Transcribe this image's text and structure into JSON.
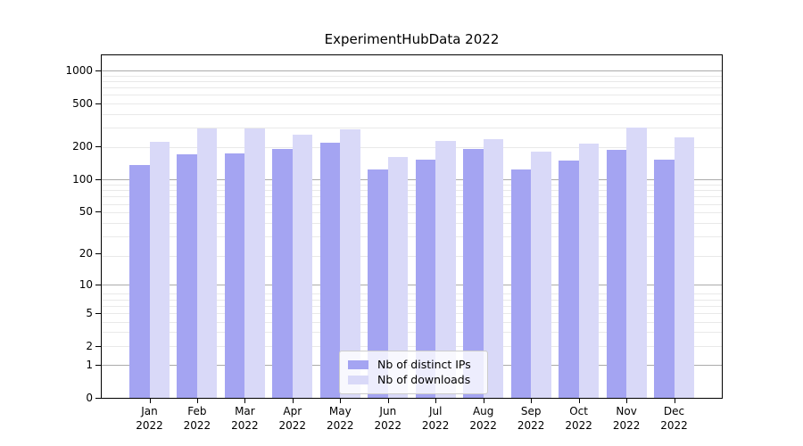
{
  "chart_data": {
    "type": "bar",
    "title": "ExperimentHubData 2022",
    "categories": [
      "Jan\n2022",
      "Feb\n2022",
      "Mar\n2022",
      "Apr\n2022",
      "May\n2022",
      "Jun\n2022",
      "Jul\n2022",
      "Aug\n2022",
      "Sep\n2022",
      "Oct\n2022",
      "Nov\n2022",
      "Dec\n2022"
    ],
    "series": [
      {
        "name": "Nb of distinct IPs",
        "color": "#a4a4f2",
        "values": [
          136,
          170,
          173,
          191,
          215,
          123,
          152,
          190,
          123,
          148,
          185,
          150
        ]
      },
      {
        "name": "Nb of downloads",
        "color": "#d9d9f8",
        "values": [
          220,
          293,
          293,
          258,
          288,
          161,
          225,
          235,
          178,
          213,
          300,
          245
        ]
      }
    ],
    "xlabel": "",
    "ylabel": "",
    "yscale": "log(value+1)",
    "y_ticks": [
      0,
      1,
      2,
      5,
      10,
      20,
      50,
      100,
      200,
      500,
      1000
    ],
    "ylim": [
      0,
      1376
    ],
    "grid": "horizontal-minor-and-major",
    "major_gridline_values": [
      1,
      10,
      100,
      1000
    ],
    "legend_position": "lower center"
  },
  "colors": {
    "major_grid": "#ababab",
    "minor_grid": "#e9e9e9",
    "spine": "#000000"
  }
}
